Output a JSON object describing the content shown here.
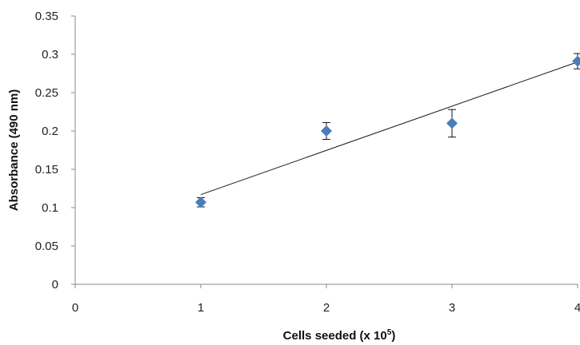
{
  "chart_data": {
    "type": "scatter",
    "title": "",
    "xlabel": "Cells seeded (x 10",
    "xlabel_superscript": "5",
    "xlabel_suffix": ")",
    "ylabel": "Absorbance (490 nm)",
    "xlim": [
      0,
      4
    ],
    "ylim": [
      0,
      0.35
    ],
    "x_ticks": [
      "0",
      "1",
      "2",
      "3",
      "4"
    ],
    "y_ticks": [
      "0",
      "0.05",
      "0.1",
      "0.15",
      "0.2",
      "0.25",
      "0.3",
      "0.35"
    ],
    "grid": false,
    "legend": "none",
    "marker": "diamond",
    "marker_color": "#4a7ebb",
    "series": [
      {
        "points": [
          {
            "x": 1,
            "y": 0.107,
            "err": 0.006
          },
          {
            "x": 2,
            "y": 0.2,
            "err": 0.011
          },
          {
            "x": 3,
            "y": 0.21,
            "err": 0.018
          },
          {
            "x": 4,
            "y": 0.291,
            "err": 0.01
          }
        ]
      }
    ],
    "trendline": {
      "type": "linear",
      "from": {
        "x": 1,
        "y": 0.117
      },
      "to": {
        "x": 4,
        "y": 0.29
      }
    }
  }
}
